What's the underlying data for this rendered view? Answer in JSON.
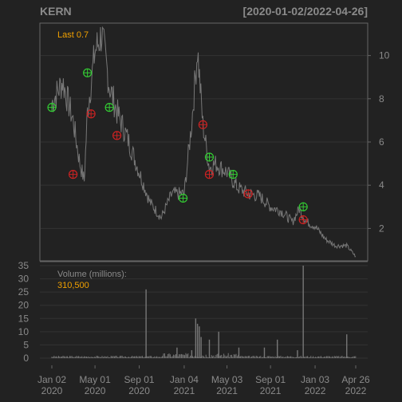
{
  "chart_data": [
    {
      "type": "line",
      "ticker": "KERN",
      "date_range": "[2020-01-02/2022-04-26]",
      "last_label": "Last 0.7",
      "y_ticks": [
        2,
        4,
        6,
        8,
        10
      ],
      "ylim": [
        0.5,
        11.5
      ],
      "x": [
        "2020-01-02",
        "2020-02-01",
        "2020-03-01",
        "2020-03-20",
        "2020-04-01",
        "2020-04-10",
        "2020-05-01",
        "2020-05-20",
        "2020-06-10",
        "2020-07-01",
        "2020-08-01",
        "2020-09-01",
        "2020-10-01",
        "2020-11-01",
        "2020-12-01",
        "2021-01-04",
        "2021-01-25",
        "2021-02-10",
        "2021-02-25",
        "2021-03-15",
        "2021-04-01",
        "2021-05-03",
        "2021-06-01",
        "2021-07-01",
        "2021-08-01",
        "2021-09-01",
        "2021-10-01",
        "2021-11-01",
        "2021-11-20",
        "2021-12-10",
        "2022-01-03",
        "2022-02-01",
        "2022-03-01",
        "2022-04-01",
        "2022-04-26"
      ],
      "y": [
        7.8,
        8.8,
        7.0,
        5.0,
        4.2,
        7.4,
        10.2,
        11.0,
        8.6,
        7.4,
        6.1,
        4.6,
        3.2,
        2.5,
        3.6,
        3.6,
        6.9,
        10.3,
        6.8,
        4.8,
        5.0,
        4.6,
        3.9,
        3.6,
        3.5,
        3.0,
        2.8,
        2.3,
        2.9,
        2.3,
        2.1,
        1.5,
        1.2,
        1.2,
        0.7
      ],
      "buy_signals": [
        {
          "date": "2020-01-02",
          "price": 7.6
        },
        {
          "date": "2020-04-10",
          "price": 9.2
        },
        {
          "date": "2020-06-10",
          "price": 7.6
        },
        {
          "date": "2021-01-01",
          "price": 3.4
        },
        {
          "date": "2021-03-15",
          "price": 5.3
        },
        {
          "date": "2021-05-20",
          "price": 4.5
        },
        {
          "date": "2021-12-01",
          "price": 3.0
        }
      ],
      "sell_signals": [
        {
          "date": "2020-03-01",
          "price": 4.5
        },
        {
          "date": "2020-04-20",
          "price": 7.3
        },
        {
          "date": "2020-07-01",
          "price": 6.3
        },
        {
          "date": "2021-02-25",
          "price": 6.8
        },
        {
          "date": "2021-03-15",
          "price": 4.5
        },
        {
          "date": "2021-07-01",
          "price": 3.6
        },
        {
          "date": "2021-12-01",
          "price": 2.4
        }
      ]
    },
    {
      "type": "bar",
      "title": "Volume (millions):",
      "last_value_label": "310,500",
      "y_ticks": [
        0,
        5,
        10,
        15,
        20,
        25,
        30,
        35
      ],
      "ylim": [
        0,
        35
      ],
      "spikes": [
        {
          "date": "2020-09-20",
          "value": 26
        },
        {
          "date": "2020-12-15",
          "value": 4
        },
        {
          "date": "2021-01-25",
          "value": 3
        },
        {
          "date": "2021-02-05",
          "value": 15
        },
        {
          "date": "2021-02-10",
          "value": 13
        },
        {
          "date": "2021-02-15",
          "value": 12
        },
        {
          "date": "2021-02-20",
          "value": 8
        },
        {
          "date": "2021-03-15",
          "value": 7
        },
        {
          "date": "2021-04-10",
          "value": 10
        },
        {
          "date": "2021-06-05",
          "value": 4
        },
        {
          "date": "2021-08-15",
          "value": 4
        },
        {
          "date": "2021-09-20",
          "value": 7
        },
        {
          "date": "2021-11-15",
          "value": 3
        },
        {
          "date": "2021-12-01",
          "value": 35
        },
        {
          "date": "2022-04-01",
          "value": 9
        }
      ]
    }
  ],
  "x_axis_ticks": [
    {
      "date": "2020-01-02",
      "line1": "Jan 02",
      "line2": "2020"
    },
    {
      "date": "2020-05-01",
      "line1": "May 01",
      "line2": "2020"
    },
    {
      "date": "2020-09-01",
      "line1": "Sep 01",
      "line2": "2020"
    },
    {
      "date": "2021-01-04",
      "line1": "Jan 04",
      "line2": "2021"
    },
    {
      "date": "2021-05-03",
      "line1": "May 03",
      "line2": "2021"
    },
    {
      "date": "2021-09-01",
      "line1": "Sep 01",
      "line2": "2021"
    },
    {
      "date": "2022-01-03",
      "line1": "Jan 03",
      "line2": "2022"
    },
    {
      "date": "2022-04-26",
      "line1": "Apr 26",
      "line2": "2022"
    }
  ],
  "colors": {
    "background": "#222222",
    "panel_border": "#666666",
    "grid": "#333333",
    "price_line": "#777777",
    "volume_bars": "#777777",
    "axis_text": "#8a8a8a",
    "title_text": "#8a8a8a",
    "accent": "#f0a000",
    "buy": "#33cc33",
    "sell": "#cc2222"
  }
}
